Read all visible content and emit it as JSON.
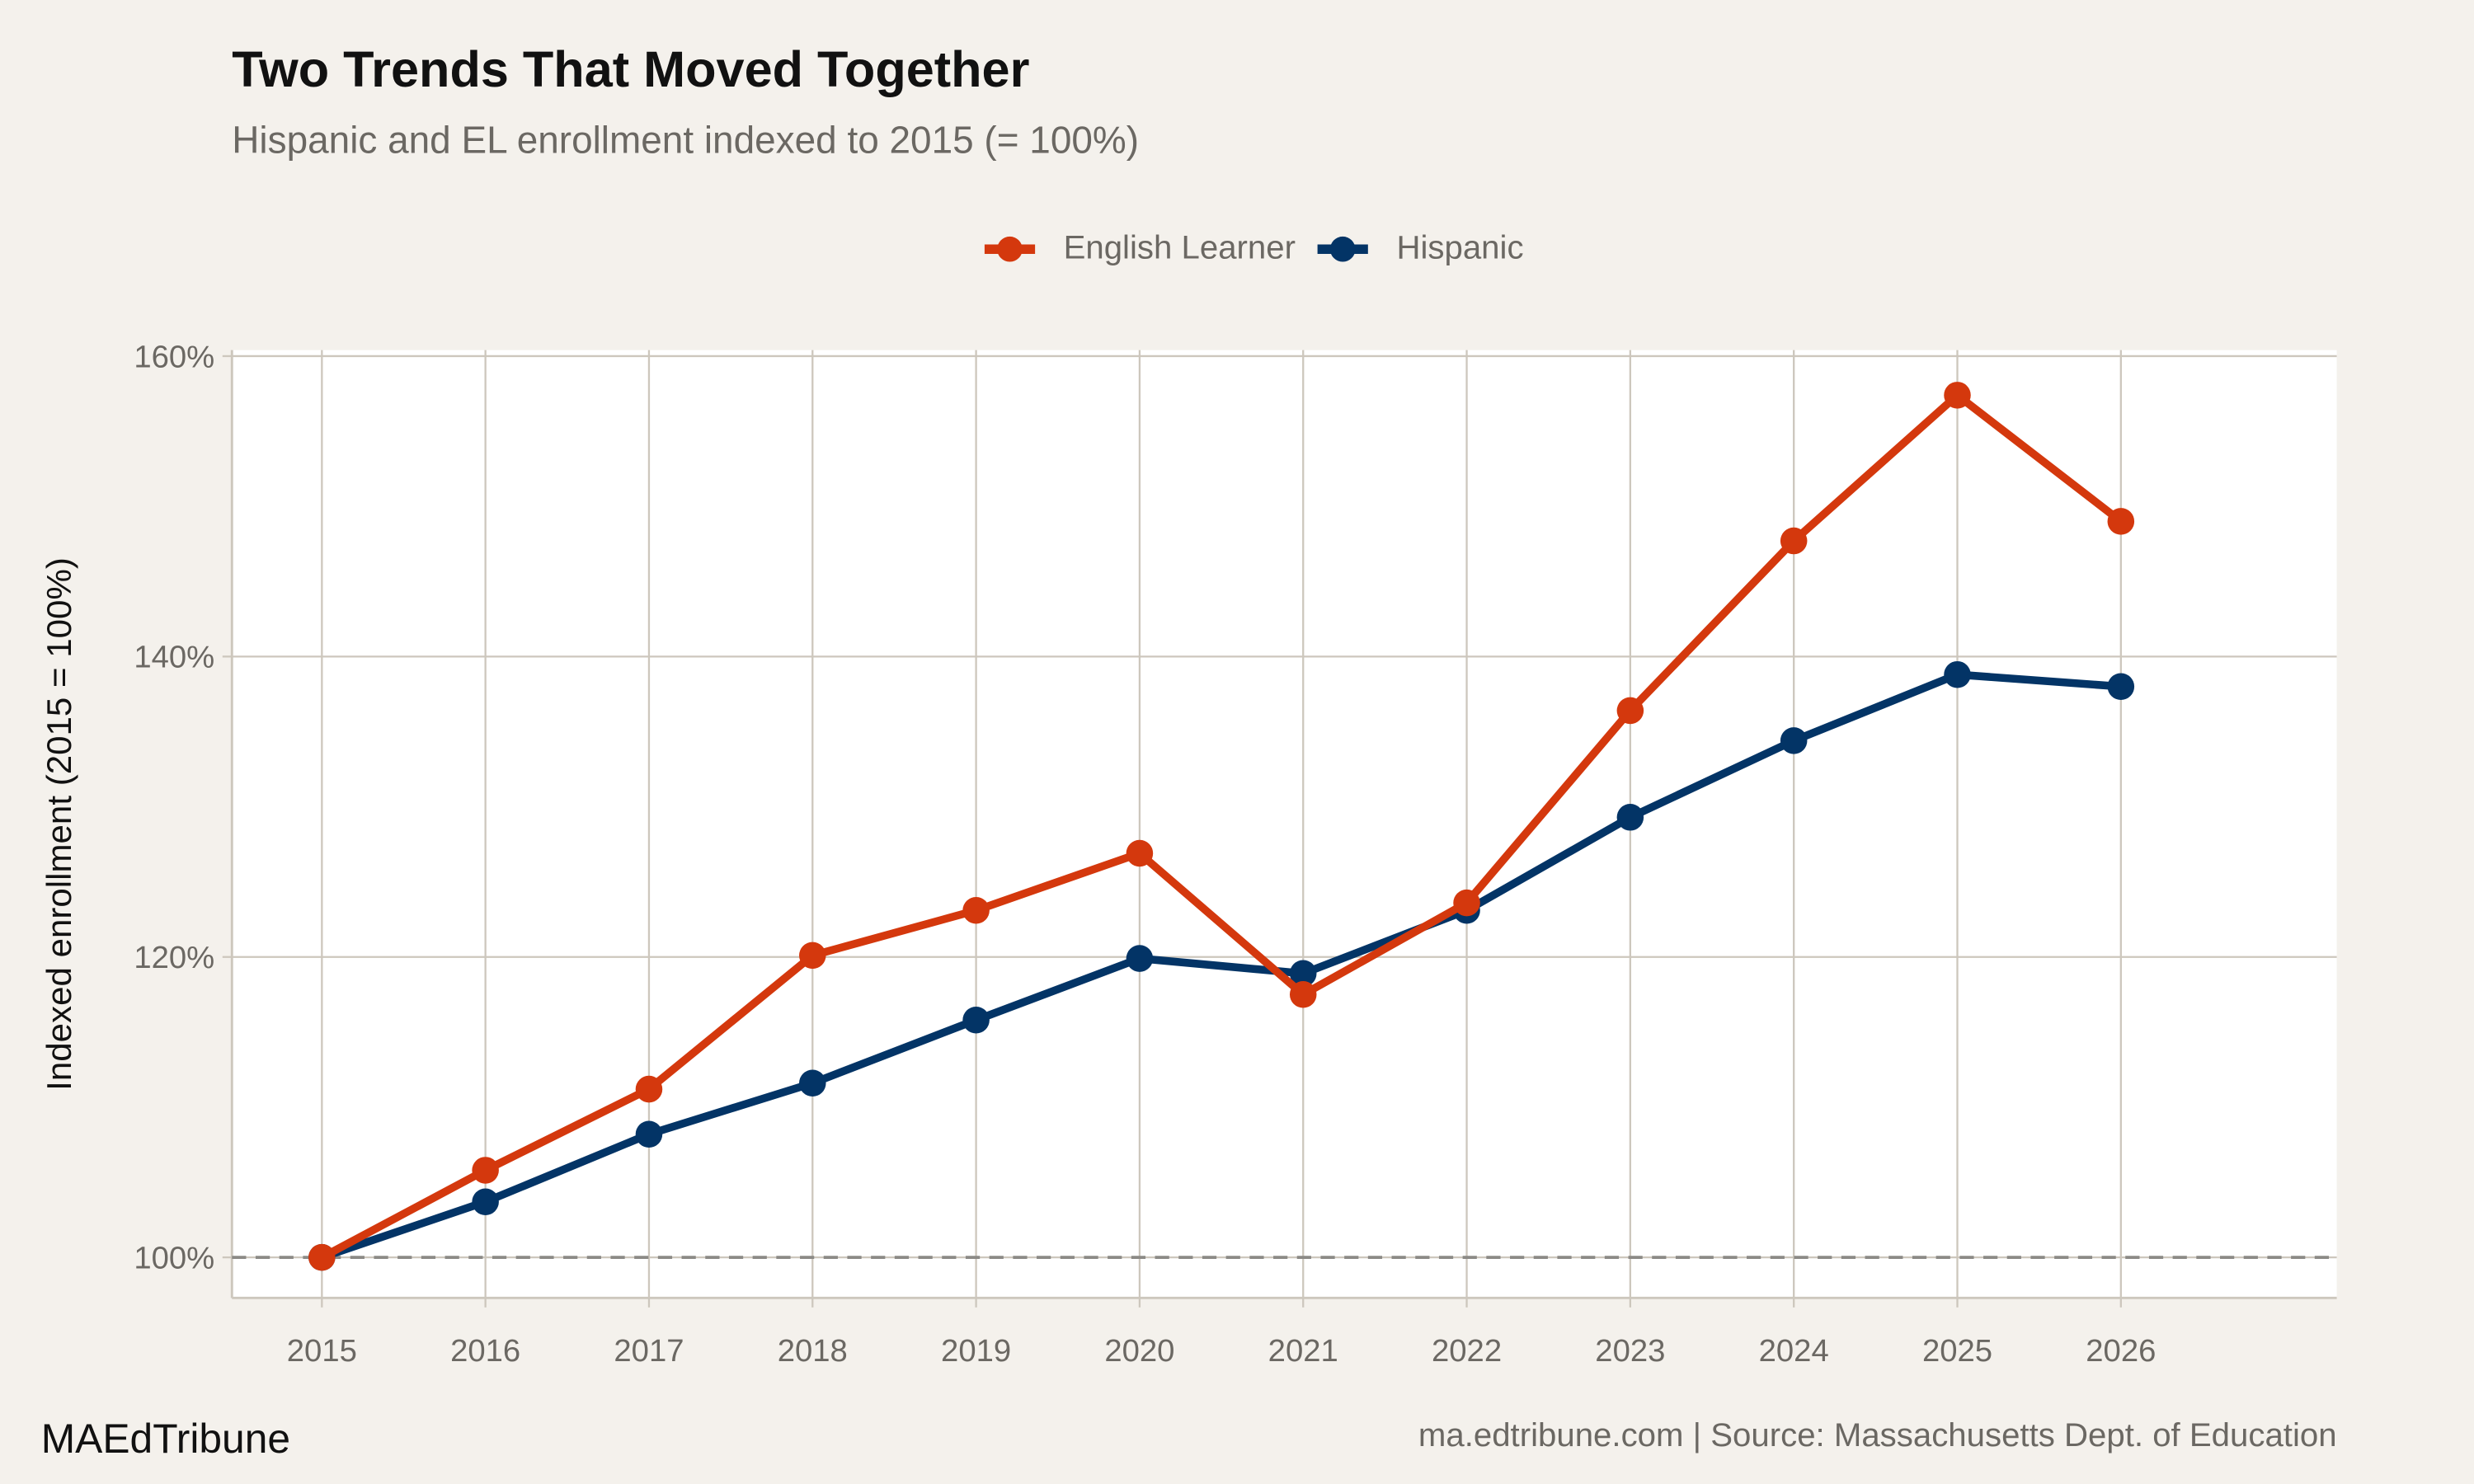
{
  "chart_data": {
    "type": "line",
    "title": "Two Trends That Moved Together",
    "subtitle": "Hispanic and EL enrollment indexed to 2015 (= 100%)",
    "xlabel": "",
    "ylabel": "Indexed enrollment (2015 = 100%)",
    "x": [
      2015,
      2016,
      2017,
      2018,
      2019,
      2020,
      2021,
      2022,
      2023,
      2024,
      2025,
      2026
    ],
    "x_tick_labels": [
      "2015",
      "2016",
      "2017",
      "2018",
      "2019",
      "2020",
      "2021",
      "2022",
      "2023",
      "2024",
      "2025",
      "2026"
    ],
    "y_ticks": [
      100,
      120,
      140,
      160
    ],
    "y_tick_labels": [
      "100%",
      "120%",
      "140%",
      "160%"
    ],
    "xlim": [
      2014.45,
      2027.32
    ],
    "ylim": [
      97.3,
      160.4
    ],
    "grid": true,
    "reference_line": {
      "y": 100,
      "style": "dashed",
      "color": "#8c8a86"
    },
    "legend_position": "top",
    "series": [
      {
        "name": "English Learner",
        "color": "#d4380d",
        "values": [
          100,
          105.8,
          111.2,
          120.1,
          123.1,
          126.9,
          117.5,
          123.6,
          136.4,
          147.7,
          157.4,
          149.0
        ]
      },
      {
        "name": "Hispanic",
        "color": "#033466",
        "values": [
          100,
          103.7,
          108.2,
          111.6,
          115.8,
          119.9,
          118.9,
          123.1,
          129.3,
          134.4,
          138.8,
          138.0
        ]
      }
    ]
  },
  "footer": {
    "brand": "MAEdTribune",
    "source": "ma.edtribune.com | Source: Massachusetts Dept. of Education"
  }
}
